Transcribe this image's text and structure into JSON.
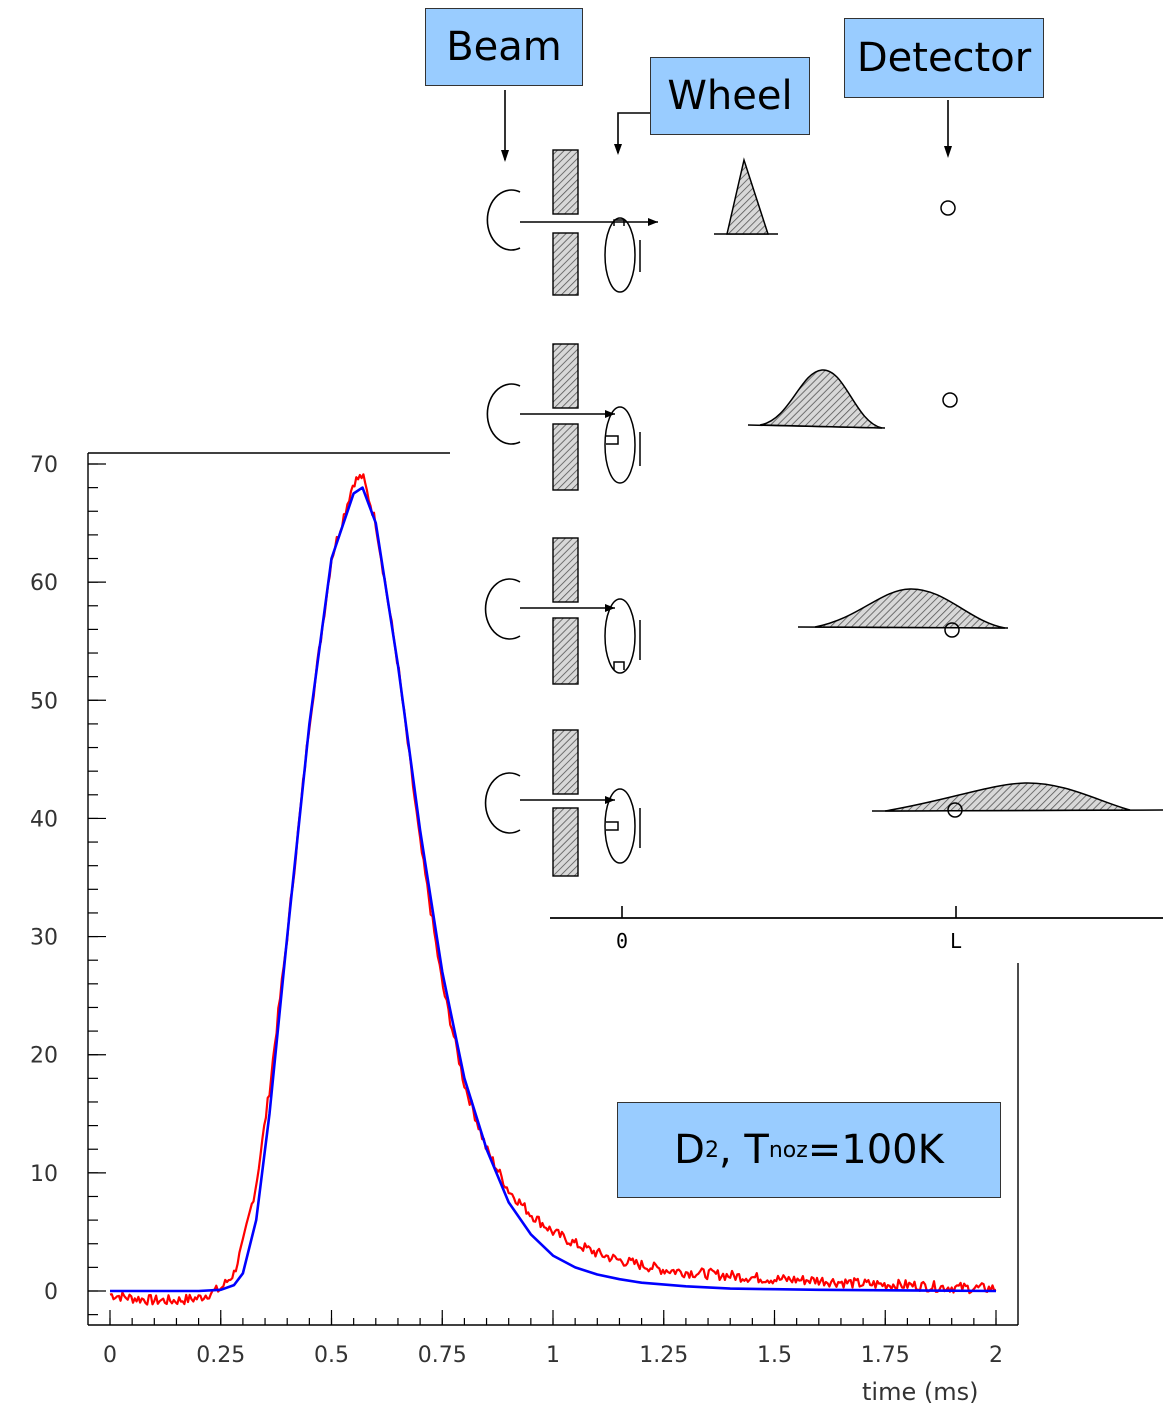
{
  "chart_data": {
    "type": "line",
    "xlabel": "time (ms)",
    "ylabel": "",
    "xlim": [
      -0.04,
      2.04
    ],
    "ylim": [
      -3,
      70
    ],
    "x_ticks": [
      "0",
      "0.25",
      "0.5",
      "0.75",
      "1",
      "1.25",
      "1.5",
      "1.75",
      "2"
    ],
    "y_ticks": [
      "0",
      "10",
      "20",
      "30",
      "40",
      "50",
      "60",
      "70"
    ],
    "grid": false,
    "series": [
      {
        "color": "#ff0000",
        "style": "noisy-measured",
        "x": [
          0.0,
          0.05,
          0.1,
          0.15,
          0.2,
          0.25,
          0.28,
          0.3,
          0.33,
          0.36,
          0.4,
          0.45,
          0.5,
          0.55,
          0.57,
          0.6,
          0.65,
          0.7,
          0.75,
          0.8,
          0.85,
          0.9,
          0.95,
          1.0,
          1.05,
          1.1,
          1.15,
          1.2,
          1.25,
          1.3,
          1.4,
          1.5,
          1.6,
          1.7,
          1.8,
          1.9,
          2.0
        ],
        "y": [
          -0.3,
          -0.6,
          -0.8,
          -0.8,
          -0.6,
          0.2,
          1.5,
          4.0,
          9.0,
          17.0,
          30.0,
          48.0,
          62.0,
          68.5,
          69.0,
          65.0,
          53.0,
          38.0,
          26.0,
          17.5,
          12.0,
          8.5,
          6.5,
          5.0,
          4.0,
          3.2,
          2.6,
          2.2,
          1.8,
          1.6,
          1.3,
          1.0,
          0.9,
          0.6,
          0.5,
          0.3,
          0.2
        ]
      },
      {
        "color": "#0000ff",
        "style": "smooth-fit",
        "x": [
          0.0,
          0.1,
          0.2,
          0.25,
          0.28,
          0.3,
          0.33,
          0.36,
          0.4,
          0.45,
          0.5,
          0.55,
          0.57,
          0.6,
          0.65,
          0.7,
          0.75,
          0.8,
          0.85,
          0.9,
          0.95,
          1.0,
          1.05,
          1.1,
          1.15,
          1.2,
          1.3,
          1.4,
          1.5,
          1.6,
          1.8,
          2.0
        ],
        "y": [
          0.0,
          0.0,
          0.0,
          0.1,
          0.5,
          1.5,
          6.0,
          15.0,
          30.0,
          48.0,
          62.0,
          67.5,
          68.0,
          65.0,
          53.0,
          39.0,
          27.0,
          18.0,
          12.0,
          7.5,
          4.8,
          3.0,
          2.0,
          1.4,
          1.0,
          0.7,
          0.4,
          0.2,
          0.15,
          0.1,
          0.05,
          0.0
        ]
      }
    ],
    "annotation": {
      "text_main": "D",
      "sub1": "2",
      "text_mid": ", T",
      "sub2": "noz",
      "text_end": "=100K"
    }
  },
  "diagram": {
    "labels": {
      "beam": "Beam",
      "wheel": "Wheel",
      "detector": "Detector"
    },
    "axis_labels": {
      "origin": "0",
      "length": "L"
    }
  }
}
